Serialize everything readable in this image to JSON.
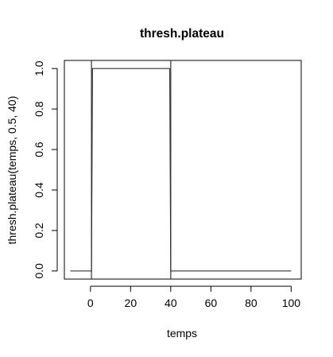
{
  "chart_data": {
    "type": "line",
    "title": "thresh.plateau",
    "xlabel": "temps",
    "ylabel": "thresh.plateau(temps, 0.5, 40)",
    "xlim": [
      -13,
      105
    ],
    "ylim": [
      -0.04,
      1.04
    ],
    "x_ticks": [
      0,
      20,
      40,
      60,
      80,
      100
    ],
    "y_ticks": [
      0.0,
      0.2,
      0.4,
      0.6,
      0.8,
      1.0
    ],
    "x_tick_labels": [
      "0",
      "20",
      "40",
      "60",
      "80",
      "100"
    ],
    "y_tick_labels": [
      "0.0",
      "0.2",
      "0.4",
      "0.6",
      "0.8",
      "1.0"
    ],
    "grid": false,
    "vertical_lines": [
      0.5,
      40
    ],
    "series": [
      {
        "x": [
          -10,
          0.5,
          1,
          39.5,
          40,
          100
        ],
        "y": [
          0,
          0,
          1,
          1,
          0,
          0
        ]
      }
    ]
  }
}
